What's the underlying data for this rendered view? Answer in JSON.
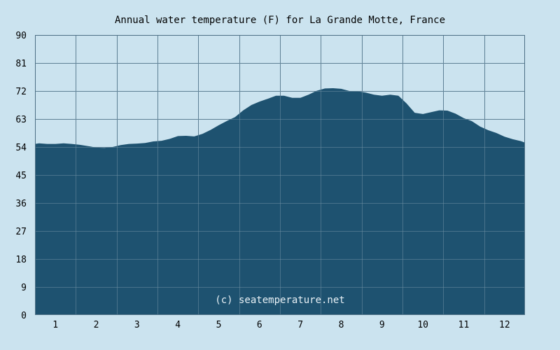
{
  "chart_data": {
    "type": "area",
    "title": "Annual water temperature (F) for La Grande Motte, France",
    "watermark": "(c) seatemperature.net",
    "xlabel": "",
    "ylabel": "",
    "x_ticks": [
      "1",
      "2",
      "3",
      "4",
      "5",
      "6",
      "7",
      "8",
      "9",
      "10",
      "11",
      "12"
    ],
    "y_ticks": [
      "0",
      "9",
      "18",
      "27",
      "36",
      "45",
      "54",
      "63",
      "72",
      "81",
      "90"
    ],
    "xlim": [
      0.5,
      12.5
    ],
    "ylim": [
      0,
      90
    ],
    "grid": true,
    "colors": {
      "background": "#cbe3ef",
      "plot_background": "#cbe3ef",
      "fill": "#1e5270",
      "grid": "#4d6f85",
      "gridline_inside": "#6d8ea3",
      "frame": "#4d6f85"
    },
    "series": [
      {
        "x": [
          0.5,
          0.6,
          0.8,
          1.0,
          1.2,
          1.4,
          1.6,
          1.8,
          2.0,
          2.2,
          2.4,
          2.6,
          2.8,
          3.0,
          3.2,
          3.4,
          3.6,
          3.8,
          4.0,
          4.2,
          4.4,
          4.6,
          4.8,
          5.0,
          5.2,
          5.4,
          5.6,
          5.8,
          6.0,
          6.2,
          6.4,
          6.6,
          6.8,
          7.0,
          7.2,
          7.4,
          7.6,
          7.8,
          8.0,
          8.2,
          8.4,
          8.6,
          8.8,
          9.0,
          9.2,
          9.4,
          9.6,
          9.8,
          10.0,
          10.2,
          10.4,
          10.6,
          10.8,
          11.0,
          11.2,
          11.4,
          11.6,
          11.8,
          12.0,
          12.2,
          12.4,
          12.5
        ],
        "values": [
          55.0,
          55.2,
          55.0,
          55.0,
          55.2,
          55.0,
          54.7,
          54.3,
          53.8,
          53.7,
          54.0,
          54.6,
          55.0,
          55.1,
          55.3,
          55.8,
          56.0,
          56.6,
          57.5,
          57.6,
          57.4,
          58.2,
          59.5,
          61.0,
          62.4,
          63.6,
          65.8,
          67.5,
          68.6,
          69.5,
          70.5,
          70.5,
          69.8,
          69.8,
          70.8,
          72.1,
          72.8,
          72.9,
          72.7,
          72.0,
          71.9,
          71.5,
          70.8,
          70.5,
          70.8,
          70.5,
          68.0,
          65.0,
          64.6,
          65.2,
          65.8,
          65.7,
          64.7,
          63.3,
          62.3,
          60.6,
          59.4,
          58.5,
          57.3,
          56.5,
          55.9,
          55.4
        ]
      }
    ]
  }
}
